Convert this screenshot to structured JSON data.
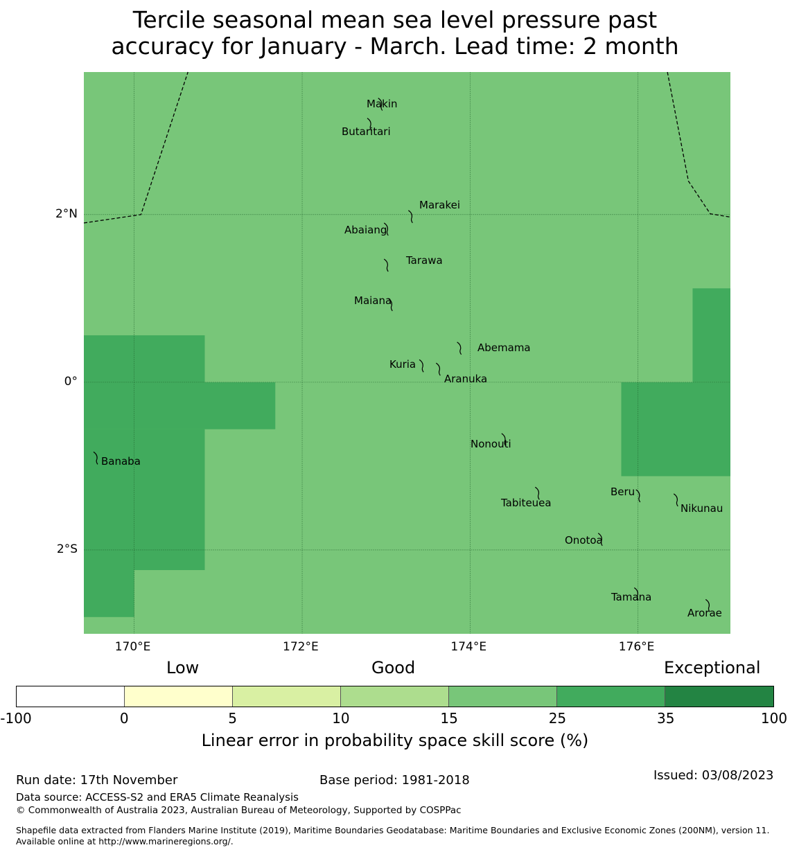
{
  "title": {
    "line1": "Tercile seasonal mean sea level pressure past",
    "line2": "accuracy for January - March. Lead time: 2 month"
  },
  "map": {
    "lon_range": [
      169.4,
      177.1
    ],
    "lat_range": [
      -3.0,
      3.7
    ],
    "background_category": "15-25",
    "axis": {
      "lon_ticks": [
        170,
        172,
        174,
        176
      ],
      "lon_labels": [
        "170°E",
        "172°E",
        "174°E",
        "176°E"
      ],
      "lat_ticks": [
        2,
        0,
        -2
      ],
      "lat_labels": [
        "2°N",
        "0°",
        "2°S"
      ]
    },
    "skill_regions_25_35": [
      {
        "lon": [
          169.4,
          170.84
        ],
        "lat": [
          0.56,
          -0.56
        ]
      },
      {
        "lon": [
          169.4,
          171.68
        ],
        "lat": [
          0.0,
          -0.56
        ]
      },
      {
        "lon": [
          169.4,
          170.84
        ],
        "lat": [
          -0.56,
          -2.24
        ]
      },
      {
        "lon": [
          169.4,
          170.0
        ],
        "lat": [
          -2.24,
          -2.8
        ]
      },
      {
        "lon": [
          176.65,
          177.1
        ],
        "lat": [
          1.12,
          0.0
        ]
      },
      {
        "lon": [
          175.8,
          177.1
        ],
        "lat": [
          0.0,
          -1.12
        ]
      }
    ],
    "islands": [
      {
        "name": "Makin",
        "lon": 172.93,
        "lat": 3.34
      },
      {
        "name": "Butaritari",
        "lon": 172.8,
        "lat": 3.1
      },
      {
        "name": "Marakei",
        "lon": 173.29,
        "lat": 2.0
      },
      {
        "name": "Abaiang",
        "lon": 173.0,
        "lat": 1.85
      },
      {
        "name": "Tarawa",
        "lon": 173.0,
        "lat": 1.42
      },
      {
        "name": "Maiana",
        "lon": 173.05,
        "lat": 0.95
      },
      {
        "name": "Abemama",
        "lon": 173.87,
        "lat": 0.43
      },
      {
        "name": "Kuria",
        "lon": 173.42,
        "lat": 0.22
      },
      {
        "name": "Aranuka",
        "lon": 173.62,
        "lat": 0.18
      },
      {
        "name": "Nonouti",
        "lon": 174.4,
        "lat": -0.66
      },
      {
        "name": "Banaba",
        "lon": 169.54,
        "lat": -0.88
      },
      {
        "name": "Tabiteuea",
        "lon": 174.8,
        "lat": -1.3
      },
      {
        "name": "Beru",
        "lon": 176.0,
        "lat": -1.33
      },
      {
        "name": "Nikunau",
        "lon": 176.45,
        "lat": -1.38
      },
      {
        "name": "Onotoa",
        "lon": 175.55,
        "lat": -1.85
      },
      {
        "name": "Tamana",
        "lon": 175.98,
        "lat": -2.5
      },
      {
        "name": "Arorae",
        "lon": 176.83,
        "lat": -2.64
      }
    ],
    "boundaries": [
      [
        [
          169.4,
          1.9
        ],
        [
          170.08,
          2.0
        ],
        [
          170.64,
          3.7
        ]
      ],
      [
        [
          176.35,
          3.7
        ],
        [
          176.6,
          2.4
        ],
        [
          176.86,
          2.01
        ],
        [
          177.1,
          1.97
        ]
      ]
    ]
  },
  "legend": {
    "headings": {
      "low": "Low",
      "good": "Good",
      "exceptional": "Exceptional"
    },
    "categories": [
      {
        "from": -100,
        "to": 0,
        "color": "#ffffff"
      },
      {
        "from": 0,
        "to": 5,
        "color": "#ffffcc"
      },
      {
        "from": 5,
        "to": 10,
        "color": "#d9f0a3"
      },
      {
        "from": 10,
        "to": 15,
        "color": "#addd8e"
      },
      {
        "from": 15,
        "to": 25,
        "color": "#78c679"
      },
      {
        "from": 25,
        "to": 35,
        "color": "#41ab5d"
      },
      {
        "from": 35,
        "to": 100,
        "color": "#238443"
      }
    ],
    "ticks": [
      "-100",
      "0",
      "5",
      "10",
      "15",
      "25",
      "35",
      "100"
    ],
    "label": "Linear error in probability space skill score (%)"
  },
  "footer": {
    "run_date": "Run date: 17th November",
    "base_period": "Base period: 1981-2018",
    "issued": "Issued: 03/08/2023",
    "data_source": "Data source: ACCESS-S2 and ERA5 Climate Reanalysis",
    "copyright": "© Commonwealth of Australia 2023, Australian Bureau of Meteorology, Supported by COSPPac",
    "shapefile": "Shapefile data extracted from Flanders Marine Institute (2019), Maritime Boundaries Geodatabase: Maritime Boundaries and Exclusive Economic Zones (200NM), version 11. Available online at http://www.marineregions.org/."
  }
}
